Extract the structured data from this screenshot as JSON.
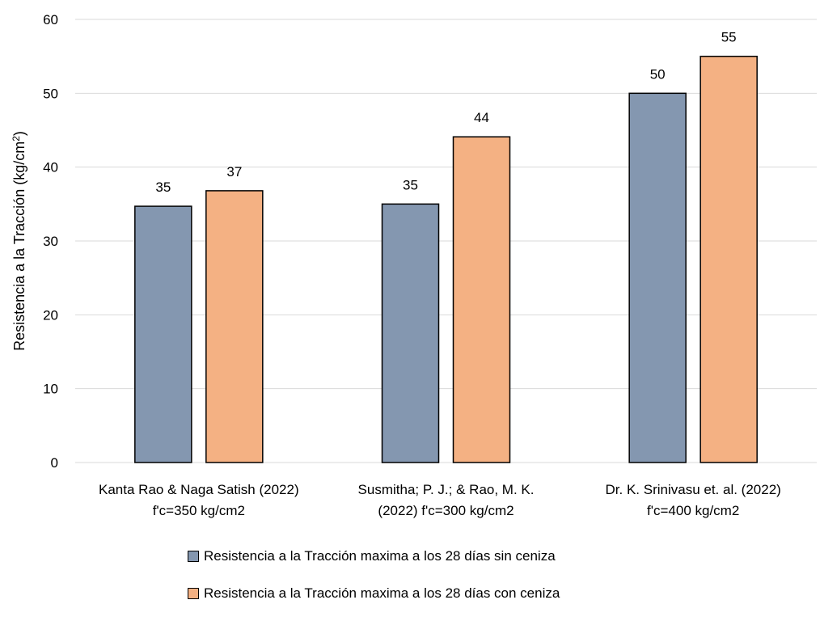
{
  "chart_data": {
    "type": "bar",
    "title": "",
    "ylabel": "Resistencia a la Tracción (kg/cm",
    "ylabel_sup": "2",
    "ylabel_end": ")",
    "ylim": [
      0,
      60
    ],
    "yticks": [
      0,
      10,
      20,
      30,
      40,
      50,
      60
    ],
    "grid": true,
    "legend_position": "bottom",
    "categories": [
      [
        "Kanta Rao & Naga Satish (2022)",
        "f'c=350 kg/cm2"
      ],
      [
        "Susmitha; P. J.; & Rao, M. K.",
        "(2022)  f'c=300 kg/cm2"
      ],
      [
        "Dr. K. Srinivasu et. al. (2022)",
        "f'c=400 kg/cm2"
      ]
    ],
    "series": [
      {
        "name": "Resistencia a la Tracción maxima a los 28 días sin ceniza",
        "values": [
          34.7,
          35.0,
          50.0
        ],
        "labels": [
          "35",
          "35",
          "50"
        ],
        "color": "#8497b0"
      },
      {
        "name": "Resistencia a la Tracción maxima a los 28 días con ceniza",
        "values": [
          36.8,
          44.1,
          55.0
        ],
        "labels": [
          "37",
          "44",
          "55"
        ],
        "color": "#f4b183"
      }
    ]
  }
}
